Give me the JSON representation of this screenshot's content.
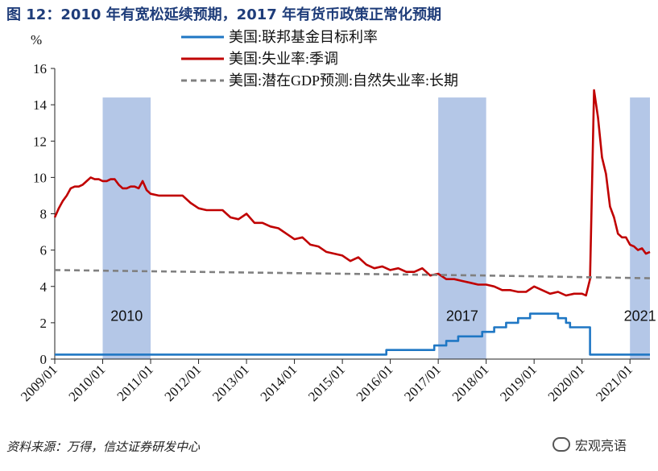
{
  "title": "图 12：2010 年有宽松延续预期，2017 年有货币政策正常化预期",
  "source": "资料来源：万得，信达证券研发中心",
  "watermark": "宏观亮语",
  "chart_data": {
    "type": "line",
    "ylabel": "%",
    "ylim": [
      0,
      16
    ],
    "yticks": [
      0,
      2,
      4,
      6,
      8,
      10,
      12,
      14,
      16
    ],
    "xlim": [
      "2009/01",
      "2021/06"
    ],
    "xticks": [
      "2009/01",
      "2010/01",
      "2011/01",
      "2012/01",
      "2013/01",
      "2014/01",
      "2015/01",
      "2016/01",
      "2017/01",
      "2018/01",
      "2019/01",
      "2020/01",
      "2021/01"
    ],
    "legend_position": "top",
    "shaded_periods": [
      {
        "label": "2010",
        "start": "2010/01",
        "end": "2011/01",
        "color": "#b4c7e7"
      },
      {
        "label": "2017",
        "start": "2017/01",
        "end": "2018/01",
        "color": "#b4c7e7"
      },
      {
        "label": "2021",
        "start": "2021/01",
        "end": "2021/06",
        "color": "#b4c7e7"
      }
    ],
    "series": [
      {
        "name": "美国:联邦基金目标利率",
        "color": "#1f77c4",
        "style": "solid",
        "points": [
          [
            "2009/01",
            0.25
          ],
          [
            "2015/12",
            0.25
          ],
          [
            "2015/12",
            0.5
          ],
          [
            "2016/12",
            0.5
          ],
          [
            "2016/12",
            0.75
          ],
          [
            "2017/03",
            0.75
          ],
          [
            "2017/03",
            1.0
          ],
          [
            "2017/06",
            1.0
          ],
          [
            "2017/06",
            1.25
          ],
          [
            "2017/12",
            1.25
          ],
          [
            "2017/12",
            1.5
          ],
          [
            "2018/03",
            1.5
          ],
          [
            "2018/03",
            1.75
          ],
          [
            "2018/06",
            1.75
          ],
          [
            "2018/06",
            2.0
          ],
          [
            "2018/09",
            2.0
          ],
          [
            "2018/09",
            2.25
          ],
          [
            "2018/12",
            2.25
          ],
          [
            "2018/12",
            2.5
          ],
          [
            "2019/07",
            2.5
          ],
          [
            "2019/07",
            2.25
          ],
          [
            "2019/09",
            2.25
          ],
          [
            "2019/09",
            2.0
          ],
          [
            "2019/10",
            2.0
          ],
          [
            "2019/10",
            1.75
          ],
          [
            "2020/03",
            1.75
          ],
          [
            "2020/03",
            0.25
          ],
          [
            "2021/06",
            0.25
          ]
        ]
      },
      {
        "name": "美国:失业率:季调",
        "color": "#c00000",
        "style": "solid",
        "points": [
          [
            "2009/01",
            7.8
          ],
          [
            "2009/02",
            8.3
          ],
          [
            "2009/03",
            8.7
          ],
          [
            "2009/04",
            9.0
          ],
          [
            "2009/05",
            9.4
          ],
          [
            "2009/06",
            9.5
          ],
          [
            "2009/07",
            9.5
          ],
          [
            "2009/08",
            9.6
          ],
          [
            "2009/09",
            9.8
          ],
          [
            "2009/10",
            10.0
          ],
          [
            "2009/11",
            9.9
          ],
          [
            "2009/12",
            9.9
          ],
          [
            "2010/01",
            9.8
          ],
          [
            "2010/02",
            9.8
          ],
          [
            "2010/03",
            9.9
          ],
          [
            "2010/04",
            9.9
          ],
          [
            "2010/05",
            9.6
          ],
          [
            "2010/06",
            9.4
          ],
          [
            "2010/07",
            9.4
          ],
          [
            "2010/08",
            9.5
          ],
          [
            "2010/09",
            9.5
          ],
          [
            "2010/10",
            9.4
          ],
          [
            "2010/11",
            9.8
          ],
          [
            "2010/12",
            9.3
          ],
          [
            "2011/01",
            9.1
          ],
          [
            "2011/03",
            9.0
          ],
          [
            "2011/05",
            9.0
          ],
          [
            "2011/07",
            9.0
          ],
          [
            "2011/09",
            9.0
          ],
          [
            "2011/11",
            8.6
          ],
          [
            "2012/01",
            8.3
          ],
          [
            "2012/03",
            8.2
          ],
          [
            "2012/05",
            8.2
          ],
          [
            "2012/07",
            8.2
          ],
          [
            "2012/09",
            7.8
          ],
          [
            "2012/11",
            7.7
          ],
          [
            "2013/01",
            8.0
          ],
          [
            "2013/03",
            7.5
          ],
          [
            "2013/05",
            7.5
          ],
          [
            "2013/07",
            7.3
          ],
          [
            "2013/09",
            7.2
          ],
          [
            "2013/11",
            6.9
          ],
          [
            "2014/01",
            6.6
          ],
          [
            "2014/03",
            6.7
          ],
          [
            "2014/05",
            6.3
          ],
          [
            "2014/07",
            6.2
          ],
          [
            "2014/09",
            5.9
          ],
          [
            "2014/11",
            5.8
          ],
          [
            "2015/01",
            5.7
          ],
          [
            "2015/03",
            5.4
          ],
          [
            "2015/05",
            5.6
          ],
          [
            "2015/07",
            5.2
          ],
          [
            "2015/09",
            5.0
          ],
          [
            "2015/11",
            5.1
          ],
          [
            "2016/01",
            4.9
          ],
          [
            "2016/03",
            5.0
          ],
          [
            "2016/05",
            4.8
          ],
          [
            "2016/07",
            4.8
          ],
          [
            "2016/09",
            5.0
          ],
          [
            "2016/11",
            4.6
          ],
          [
            "2017/01",
            4.7
          ],
          [
            "2017/03",
            4.4
          ],
          [
            "2017/05",
            4.4
          ],
          [
            "2017/07",
            4.3
          ],
          [
            "2017/09",
            4.2
          ],
          [
            "2017/11",
            4.1
          ],
          [
            "2018/01",
            4.1
          ],
          [
            "2018/03",
            4.0
          ],
          [
            "2018/05",
            3.8
          ],
          [
            "2018/07",
            3.8
          ],
          [
            "2018/09",
            3.7
          ],
          [
            "2018/11",
            3.7
          ],
          [
            "2019/01",
            4.0
          ],
          [
            "2019/03",
            3.8
          ],
          [
            "2019/05",
            3.6
          ],
          [
            "2019/07",
            3.7
          ],
          [
            "2019/09",
            3.5
          ],
          [
            "2019/11",
            3.6
          ],
          [
            "2020/01",
            3.6
          ],
          [
            "2020/02",
            3.5
          ],
          [
            "2020/03",
            4.4
          ],
          [
            "2020/04",
            14.8
          ],
          [
            "2020/05",
            13.3
          ],
          [
            "2020/06",
            11.1
          ],
          [
            "2020/07",
            10.2
          ],
          [
            "2020/08",
            8.4
          ],
          [
            "2020/09",
            7.8
          ],
          [
            "2020/10",
            6.9
          ],
          [
            "2020/11",
            6.7
          ],
          [
            "2020/12",
            6.7
          ],
          [
            "2021/01",
            6.3
          ],
          [
            "2021/02",
            6.2
          ],
          [
            "2021/03",
            6.0
          ],
          [
            "2021/04",
            6.1
          ],
          [
            "2021/05",
            5.8
          ],
          [
            "2021/06",
            5.9
          ]
        ]
      },
      {
        "name": "美国:潜在GDP预测:自然失业率:长期",
        "color": "#808080",
        "style": "dashed",
        "points": [
          [
            "2009/01",
            4.9
          ],
          [
            "2012/01",
            4.8
          ],
          [
            "2015/01",
            4.7
          ],
          [
            "2018/01",
            4.6
          ],
          [
            "2021/06",
            4.45
          ]
        ]
      }
    ]
  }
}
